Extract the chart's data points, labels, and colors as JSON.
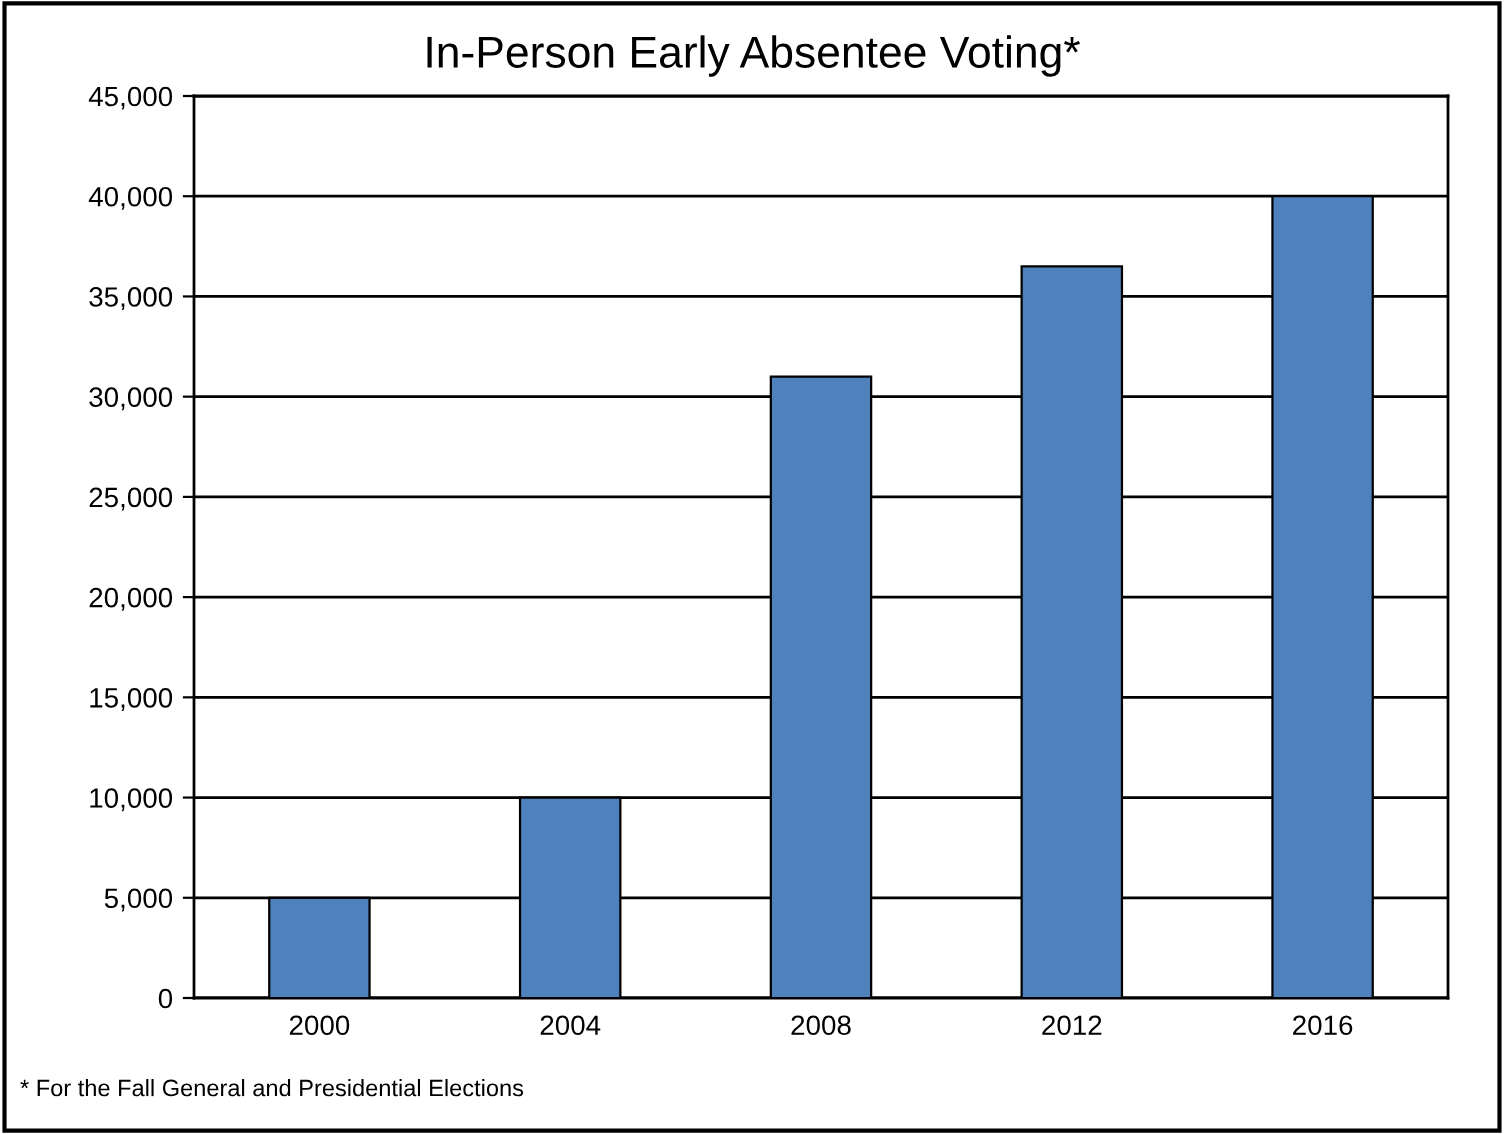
{
  "chart_data": {
    "type": "bar",
    "title": "In-Person Early Absentee Voting*",
    "categories": [
      "2000",
      "2004",
      "2008",
      "2012",
      "2016"
    ],
    "values": [
      5000,
      10000,
      31000,
      36500,
      40000
    ],
    "color": "#4f81bd",
    "ylim": [
      0,
      45000
    ],
    "yticks": [
      {
        "value": 0,
        "label": "0"
      },
      {
        "value": 5000,
        "label": "5,000"
      },
      {
        "value": 10000,
        "label": "10,000"
      },
      {
        "value": 15000,
        "label": "15,000"
      },
      {
        "value": 20000,
        "label": "20,000"
      },
      {
        "value": 25000,
        "label": "25,000"
      },
      {
        "value": 30000,
        "label": "30,000"
      },
      {
        "value": 35000,
        "label": "35,000"
      },
      {
        "value": 40000,
        "label": "40,000"
      },
      {
        "value": 45000,
        "label": "45,000"
      }
    ],
    "grid": "y",
    "legend": false,
    "annotations": [
      "* For the Fall General and Presidential Elections"
    ]
  }
}
